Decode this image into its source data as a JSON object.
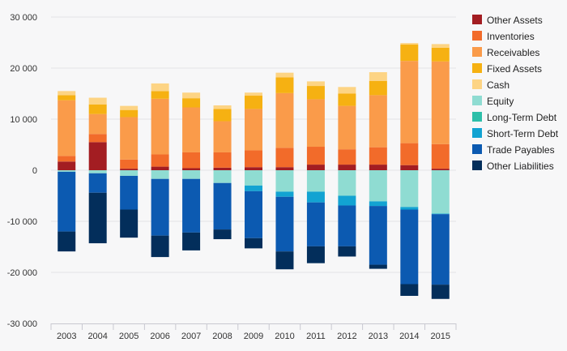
{
  "chart_data": {
    "type": "bar",
    "stacked": true,
    "title": "",
    "xlabel": "",
    "ylabel": "",
    "ylim": [
      -30000,
      30000
    ],
    "yticks": [
      30000,
      20000,
      10000,
      0,
      -10000,
      -20000,
      -30000
    ],
    "ytick_labels": [
      "30 000",
      "20 000",
      "10 000",
      "0",
      "-10 000",
      "-20 000",
      "-30 000"
    ],
    "grid": true,
    "legend_position": "right",
    "categories": [
      "2003",
      "2004",
      "2005",
      "2006",
      "2007",
      "2008",
      "2009",
      "2010",
      "2011",
      "2012",
      "2013",
      "2014",
      "2015"
    ],
    "series": [
      {
        "name": "Other Assets",
        "color": "#a31d22",
        "values": [
          1700,
          5500,
          300,
          700,
          400,
          500,
          600,
          600,
          1100,
          1100,
          1100,
          1000,
          300
        ]
      },
      {
        "name": "Inventories",
        "color": "#f26b2a",
        "values": [
          1100,
          1600,
          1800,
          2400,
          3100,
          3000,
          3300,
          3800,
          3500,
          3000,
          3400,
          4300,
          4800
        ]
      },
      {
        "name": "Receivables",
        "color": "#fa9b4a",
        "values": [
          10900,
          3900,
          8300,
          10900,
          8800,
          6100,
          8100,
          10700,
          9300,
          8500,
          10200,
          16100,
          16200
        ]
      },
      {
        "name": "Fixed Assets",
        "color": "#f6b112",
        "values": [
          1000,
          1900,
          1400,
          1500,
          1800,
          2400,
          2600,
          3100,
          2600,
          2400,
          2800,
          3200,
          2700
        ]
      },
      {
        "name": "Cash",
        "color": "#fdd484",
        "values": [
          800,
          1300,
          800,
          1500,
          1100,
          700,
          600,
          900,
          900,
          1300,
          1700,
          300,
          700
        ]
      },
      {
        "name": "Equity",
        "color": "#8fdcd2",
        "values": [
          -300,
          -600,
          -1100,
          -1700,
          -1700,
          -2500,
          -3000,
          -4200,
          -4200,
          -5000,
          -6100,
          -7200,
          -8500
        ]
      },
      {
        "name": "Long-Term Debt",
        "color": "#2dbfa9",
        "values": [
          0,
          0,
          0,
          0,
          0,
          0,
          0,
          0,
          0,
          0,
          0,
          0,
          0
        ]
      },
      {
        "name": "Short-Term Debt",
        "color": "#12a3d2",
        "values": [
          0,
          0,
          0,
          0,
          0,
          0,
          -1100,
          -1000,
          -2100,
          -1900,
          -900,
          -500,
          -100
        ]
      },
      {
        "name": "Trade Payables",
        "color": "#0c5ab1",
        "values": [
          -11700,
          -3800,
          -6600,
          -11100,
          -10500,
          -9100,
          -9200,
          -10700,
          -8600,
          -8000,
          -11500,
          -14600,
          -13800
        ]
      },
      {
        "name": "Other Liabilities",
        "color": "#032e5b",
        "values": [
          -3900,
          -9900,
          -5500,
          -4200,
          -3500,
          -1900,
          -2000,
          -3500,
          -3300,
          -2000,
          -800,
          -2300,
          -2800
        ]
      }
    ]
  }
}
